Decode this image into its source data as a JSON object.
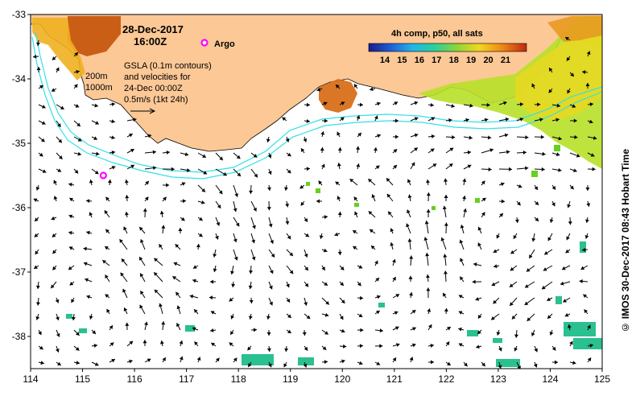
{
  "map": {
    "date_label": "28-Dec-2017",
    "time_label": "16:00Z",
    "argo_label": "Argo",
    "depth_label_1": "200m",
    "depth_label_2": "1000m",
    "gsla_lines": [
      "GSLA (0.1m contours)",
      "and velocities for",
      "24-Dec 00:00Z",
      "0.5m/s (1kt 24h)"
    ],
    "colorbar_title": "4h comp, p50, all sats",
    "colorbar_ticks": [
      "14",
      "15",
      "16",
      "17",
      "18",
      "19",
      "20",
      "21"
    ],
    "x_ticks": [
      "114",
      "115",
      "116",
      "117",
      "118",
      "119",
      "120",
      "121",
      "122",
      "123",
      "124",
      "125"
    ],
    "y_ticks": [
      "-33",
      "-34",
      "-35",
      "-36",
      "-37",
      "-38"
    ],
    "credit": "© IMOS 30-Dec-2017 08:43 Hobart Time",
    "argo_float": {
      "lon": 115.4,
      "lat": -35.5
    },
    "extent": {
      "lon_min": 114,
      "lon_max": 125,
      "lat_max": -33,
      "lat_min": -38.5
    },
    "colors": {
      "land": "#fbc896",
      "shelf_contour": "#33e0e8",
      "argo_marker": "#ff00ff",
      "sst_warm": "#c8580f",
      "sst_mid": "#f0b020",
      "sst_cool": "#b8e028",
      "sst_cold": "#2ac090"
    }
  }
}
